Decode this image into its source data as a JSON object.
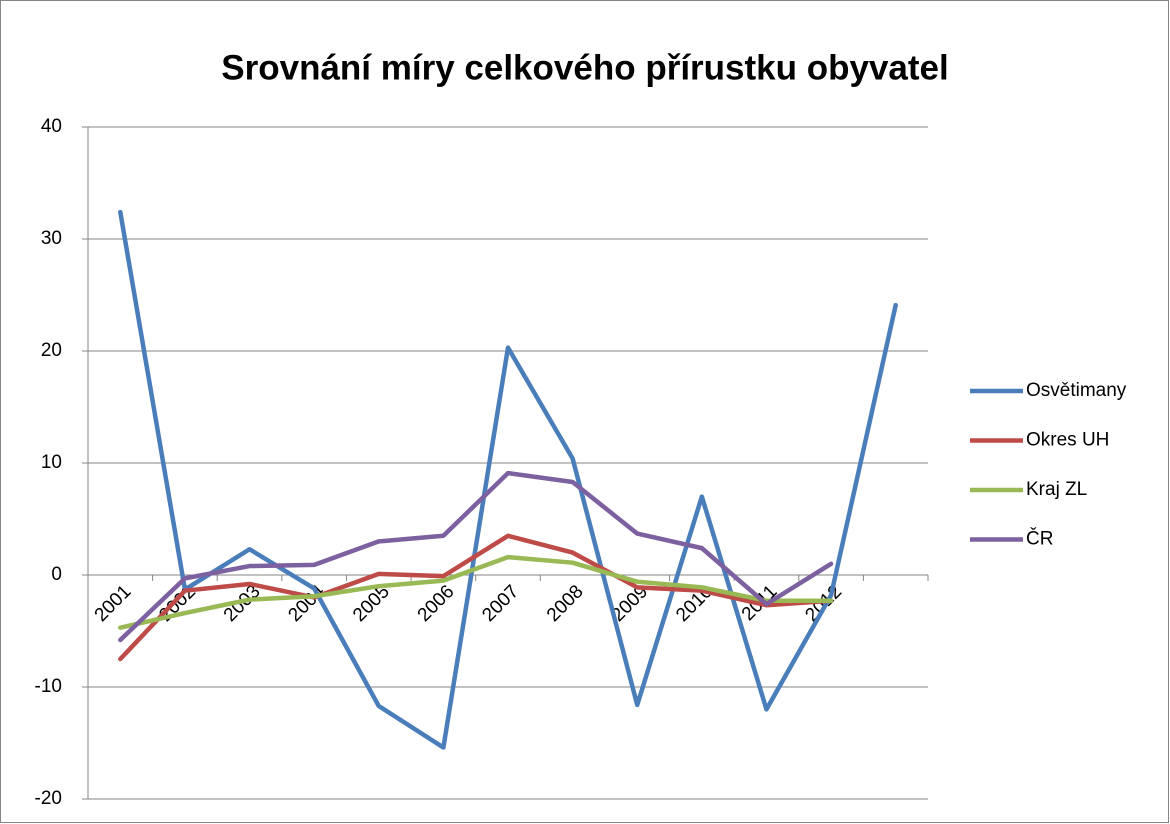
{
  "chart_data": {
    "type": "line",
    "title": "Srovnání míry celkového přírustku obyvatel",
    "categories": [
      "2001",
      "2002",
      "2003",
      "2004",
      "2005",
      "2006",
      "2007",
      "2008",
      "2009",
      "2010",
      "2011",
      "2012",
      null
    ],
    "series": [
      {
        "name": "Osvětimany",
        "color": "#4a7ebb",
        "values": [
          32.4,
          -1.3,
          2.3,
          -1.2,
          -11.7,
          -15.4,
          20.3,
          10.4,
          -11.6,
          7.0,
          -12.0,
          -1.8,
          24.1
        ]
      },
      {
        "name": "Okres UH",
        "color": "#be4b48",
        "values": [
          -7.5,
          -1.4,
          -0.8,
          -2.0,
          0.1,
          -0.1,
          3.5,
          2.0,
          -1.1,
          -1.4,
          -2.7,
          -2.3,
          null
        ]
      },
      {
        "name": "Kraj ZL",
        "color": "#98b954",
        "values": [
          -4.7,
          -3.4,
          -2.2,
          -1.9,
          -1.0,
          -0.5,
          1.6,
          1.1,
          -0.6,
          -1.1,
          -2.3,
          -2.3,
          null
        ]
      },
      {
        "name": "ČR",
        "color": "#7d60a0",
        "values": [
          -5.8,
          -0.3,
          0.8,
          0.9,
          3.0,
          3.5,
          9.1,
          8.3,
          3.7,
          2.4,
          -2.6,
          1.0,
          null
        ]
      }
    ],
    "ylim": [
      -20,
      40
    ],
    "yticks": [
      -20,
      -10,
      0,
      10,
      20,
      30,
      40
    ],
    "grid": true,
    "legend": "right"
  }
}
